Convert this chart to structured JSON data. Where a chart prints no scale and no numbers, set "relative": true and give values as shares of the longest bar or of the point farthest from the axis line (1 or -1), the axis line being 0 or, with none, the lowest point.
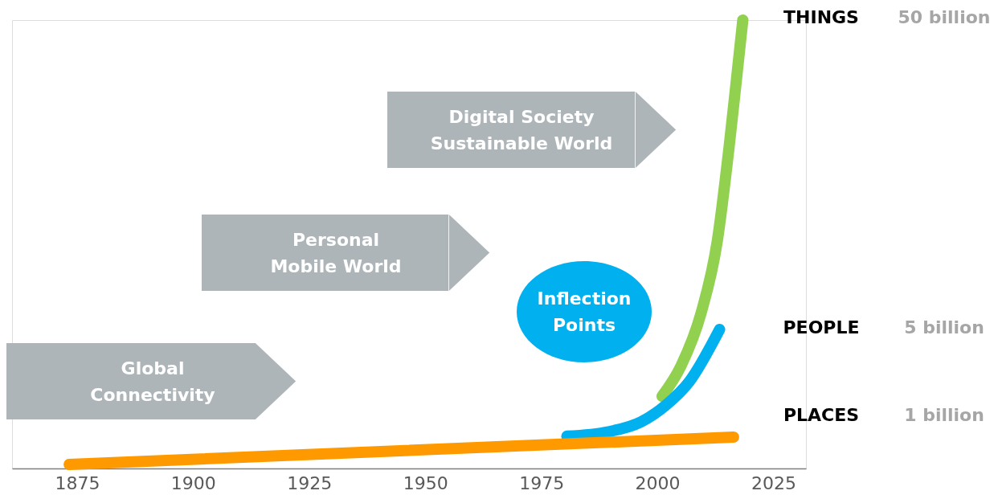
{
  "chart_data": {
    "type": "line",
    "relative": true,
    "grid": false,
    "tick_labels": "x",
    "xlim": [
      1861,
      2032
    ],
    "xticks": [
      1875,
      1900,
      1925,
      1950,
      1975,
      2000,
      2025
    ],
    "series": [
      {
        "name": "THINGS",
        "color": "#92d050",
        "x": [
          2001,
          2005.1,
          2009.4,
          2012.9,
          2015.5,
          2017.2,
          2018.4
        ],
        "values": [
          0.161,
          0.229,
          0.346,
          0.507,
          0.722,
          0.884,
          1
        ]
      },
      {
        "name": "PEOPLE",
        "color": "#00b0ef",
        "x": [
          1980.5,
          1989.5,
          1996.5,
          2001.7,
          2006.9,
          2013.4
        ],
        "values": [
          0.072,
          0.082,
          0.104,
          0.14,
          0.194,
          0.31
        ]
      },
      {
        "name": "PLACES",
        "color": "#ff9900",
        "x": [
          1873.3,
          2016.4
        ],
        "values": [
          0.009,
          0.07
        ]
      }
    ],
    "annotations": [
      "Global\nConnectivity",
      "Personal\nMobile World",
      "Digital Society\nSustainable World",
      "Inflection\nPoints",
      "50 billion",
      "5 billion",
      "1 billion"
    ]
  }
}
